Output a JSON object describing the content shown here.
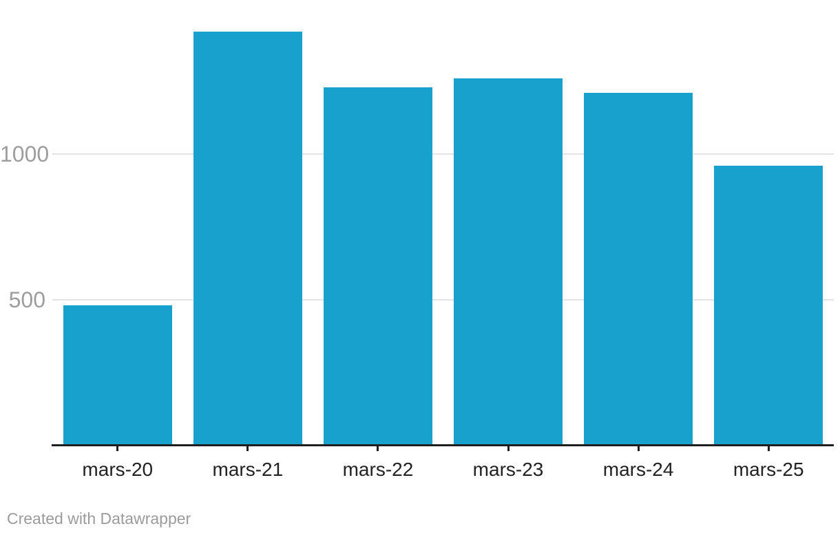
{
  "chart_data": {
    "type": "bar",
    "categories": [
      "mars-20",
      "mars-21",
      "mars-22",
      "mars-23",
      "mars-24",
      "mars-25"
    ],
    "values": [
      480,
      1420,
      1230,
      1260,
      1210,
      960
    ],
    "title": "",
    "xlabel": "",
    "ylabel": "",
    "ylim": [
      0,
      1500
    ],
    "yticks": [
      500,
      1000
    ],
    "grid": true,
    "legend": "none",
    "colors": {
      "bar": "#18a1cd",
      "gridline": "#e4e4e4",
      "axis": "#1f1f1f",
      "y_tick_label": "#9d9d9d",
      "x_tick_label": "#222222"
    }
  },
  "footer": {
    "attribution": "Created with Datawrapper"
  }
}
